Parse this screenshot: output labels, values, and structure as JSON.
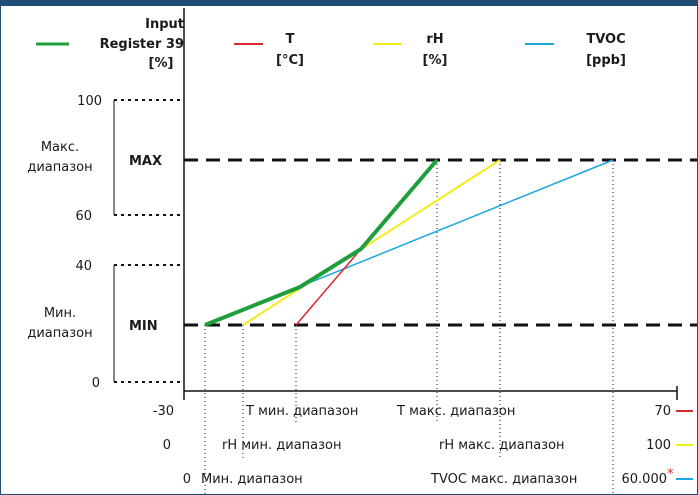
{
  "legend": {
    "input": {
      "l1": "Input",
      "l2": "Register 39",
      "l3": "[%]",
      "color": "#1e9e3c"
    },
    "t": {
      "l1": "T",
      "l2": "[°C]",
      "color": "#d62a2a"
    },
    "rh": {
      "l1": "rH",
      "l2": "[%]",
      "color": "#f2ec1c"
    },
    "tvoc": {
      "l1": "TVOC",
      "l2": "[ppb]",
      "color": "#1ea6e0"
    }
  },
  "y_ticks": {
    "t100": "100",
    "t60": "60",
    "t40": "40",
    "t0": "0"
  },
  "ranges": {
    "max_range_l1": "Макс.",
    "max_range_l2": "диапазон",
    "min_range_l1": "Мин.",
    "min_range_l2": "диапазон",
    "max_label": "MAX",
    "min_label": "MIN"
  },
  "rows": {
    "t": {
      "min_value": "-30",
      "min_label": "T мин. диапазон",
      "max_label": "T макс. диапазон",
      "max_value": "70"
    },
    "rh": {
      "min_value": "0",
      "min_label": "rH мин. диапазон",
      "max_label": "rH макс. диапазон",
      "max_value": "100"
    },
    "tvoc": {
      "min_value": "0",
      "min_label": "Мин. диапазон",
      "max_label": "TVOC макс. диапазон",
      "max_value": "60.000",
      "footnote": "*"
    }
  },
  "colors": {
    "frame": "#1f4e79",
    "dash": "#111111",
    "footnote": "#d62a2a"
  }
}
